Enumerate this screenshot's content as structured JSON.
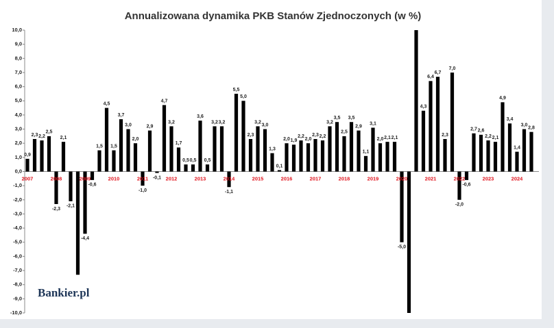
{
  "chart_data": {
    "type": "bar",
    "title": "Annualizowana dynamika PKB Stanów Zjednoczonych (w %)",
    "logo": "Bankier.pl",
    "color": "#000000",
    "categories": [
      "2007",
      null,
      null,
      null,
      "2008",
      null,
      null,
      null,
      "2009",
      null,
      null,
      null,
      "2010",
      null,
      null,
      null,
      "2011",
      null,
      null,
      null,
      "2012",
      null,
      null,
      null,
      "2013",
      null,
      null,
      null,
      "2014",
      null,
      null,
      null,
      "2015",
      null,
      null,
      null,
      "2016",
      null,
      null,
      null,
      "2017",
      null,
      null,
      null,
      "2018",
      null,
      null,
      null,
      "2019",
      null,
      null,
      null,
      "2020",
      null,
      null,
      null,
      "2021",
      null,
      null,
      null,
      "2022",
      null,
      null,
      null,
      "2023",
      null,
      null,
      null,
      "2024",
      null,
      null
    ],
    "values": [
      0.9,
      2.3,
      2.2,
      2.5,
      -2.3,
      2.1,
      -2.1,
      -7.3,
      -4.4,
      -0.6,
      1.5,
      4.5,
      1.5,
      3.7,
      3.0,
      2.0,
      -1.0,
      2.9,
      -0.1,
      4.7,
      3.2,
      1.7,
      0.5,
      0.5,
      3.6,
      0.5,
      3.2,
      3.2,
      -1.1,
      5.5,
      5.0,
      2.3,
      3.2,
      3.0,
      1.3,
      0.1,
      2.0,
      1.9,
      2.2,
      2.0,
      2.3,
      2.2,
      3.2,
      3.5,
      2.5,
      3.5,
      2.9,
      1.1,
      3.1,
      2.0,
      2.1,
      2.1,
      -5.0,
      -10,
      10,
      4.3,
      6.4,
      6.7,
      2.3,
      7.0,
      -2.0,
      -0.6,
      2.7,
      2.6,
      2.2,
      2.1,
      4.9,
      3.4,
      1.4,
      3.0,
      2.8
    ],
    "value_labels": [
      "0,9",
      "2,3",
      "2,2",
      "2,5",
      "-2,3",
      "2,1",
      "-2,1",
      null,
      "-4,4",
      "-0,6",
      "1,5",
      "4,5",
      "1,5",
      "3,7",
      "3,0",
      "2,0",
      "-1,0",
      "2,9",
      "-0,1",
      "4,7",
      "3,2",
      "1,7",
      "0,5",
      "0,5",
      "3,6",
      "0,5",
      "3,2",
      "3,2",
      "-1,1",
      "5,5",
      "5,0",
      "2,3",
      "3,2",
      "3,0",
      "1,3",
      "0,1",
      "2,0",
      "1,9",
      "2,2",
      "2,0",
      "2,3",
      "2,2",
      "3,2",
      "3,5",
      "2,5",
      "3,5",
      "2,9",
      "1,1",
      "3,1",
      "2,0",
      "2,1",
      "2,1",
      "-5,0",
      null,
      null,
      "4,3",
      "6,4",
      "6,7",
      "2,3",
      "7,0",
      "-2,0",
      "-0,6",
      "2,7",
      "2,6",
      "2,2",
      "2,1",
      "4,9",
      "3,4",
      "1,4",
      "3,0",
      "2,8"
    ],
    "ylim": [
      -10,
      10
    ],
    "yticks": [
      {
        "value": 10,
        "label": "10,0"
      },
      {
        "value": 9,
        "label": "9,0"
      },
      {
        "value": 8,
        "label": "8,0"
      },
      {
        "value": 7,
        "label": "7,0"
      },
      {
        "value": 6,
        "label": "6,0"
      },
      {
        "value": 5,
        "label": "5,0"
      },
      {
        "value": 4,
        "label": "4,0"
      },
      {
        "value": 3,
        "label": "3,0"
      },
      {
        "value": 2,
        "label": "2,0"
      },
      {
        "value": 1,
        "label": "1,0"
      },
      {
        "value": 0,
        "label": "0,0"
      },
      {
        "value": -1,
        "label": "-1,0"
      },
      {
        "value": -2,
        "label": "-2,0"
      },
      {
        "value": -3,
        "label": "-3,0"
      },
      {
        "value": -4,
        "label": "-4,0"
      },
      {
        "value": -5,
        "label": "-5,0"
      },
      {
        "value": -6,
        "label": "-6,0"
      },
      {
        "value": -7,
        "label": "-7,0"
      },
      {
        "value": -8,
        "label": "-8,0"
      },
      {
        "value": -9,
        "label": "-9,0"
      },
      {
        "value": -10,
        "label": "-10,0"
      }
    ]
  }
}
